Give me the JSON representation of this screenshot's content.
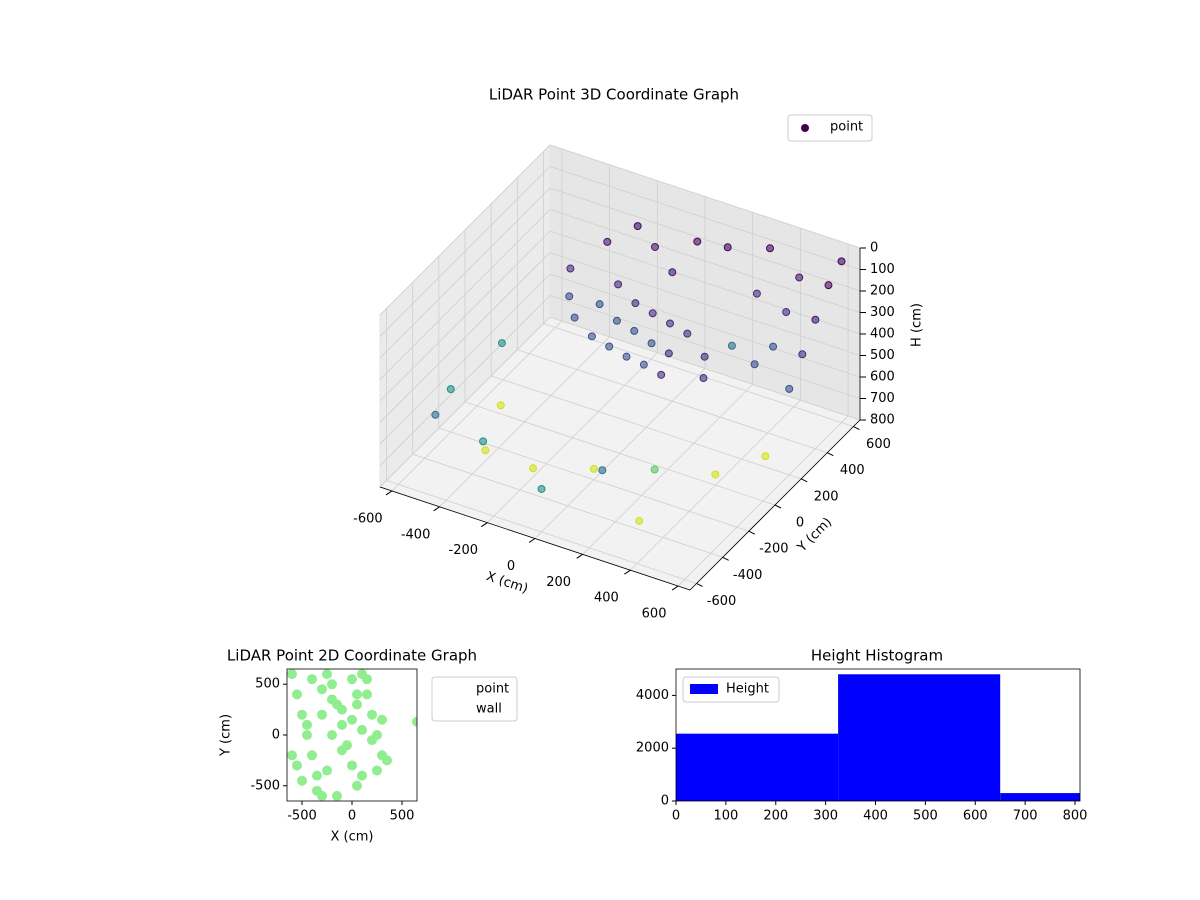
{
  "chart_data": [
    {
      "type": "scatter3d",
      "title": "LiDAR Point 3D Coordinate Graph",
      "xlabel": "X (cm)",
      "ylabel": "Y (cm)",
      "zlabel": "H (cm)",
      "xlim": [
        -650,
        650
      ],
      "ylim": [
        -650,
        650
      ],
      "zlim": [
        800,
        0
      ],
      "xticks": [
        -600,
        -400,
        -200,
        0,
        200,
        400,
        600
      ],
      "yticks": [
        -600,
        -400,
        -200,
        0,
        200,
        400,
        600
      ],
      "zticks": [
        0,
        100,
        200,
        300,
        400,
        500,
        600,
        700,
        800
      ],
      "colormap": [
        "#440154",
        "#46085c",
        "#481a6c",
        "#472d7b",
        "#3b528b",
        "#2c728e",
        "#21918c",
        "#5ec962",
        "#d0e11c"
      ],
      "legend": "upper right",
      "grid": true,
      "series": [
        {
          "name": "point",
          "color": "#440154",
          "x": [
            -300,
            -200,
            -100,
            0,
            100,
            200,
            -250,
            -150,
            -50,
            50,
            150,
            -200,
            -100,
            0,
            100,
            200,
            0,
            -100,
            -200,
            -300,
            300,
            350,
            -350,
            -400,
            50,
            150,
            600,
            600,
            600,
            600,
            600,
            450,
            450,
            450,
            300,
            300,
            -400,
            -200,
            0,
            200,
            400,
            -500,
            300,
            500,
            -500,
            -300,
            0,
            200,
            -600,
            -550,
            250,
            400
          ],
          "y": [
            200,
            150,
            100,
            50,
            0,
            -50,
            300,
            250,
            200,
            150,
            100,
            350,
            300,
            250,
            200,
            150,
            400,
            450,
            500,
            450,
            100,
            0,
            250,
            350,
            500,
            550,
            500,
            400,
            300,
            200,
            600,
            550,
            450,
            350,
            600,
            500,
            -300,
            -300,
            -200,
            -100,
            0,
            0,
            -400,
            200,
            -500,
            -500,
            -600,
            -500,
            -200,
            100,
            400,
            300
          ],
          "h": [
            400,
            420,
            400,
            380,
            350,
            330,
            380,
            390,
            370,
            360,
            340,
            300,
            320,
            300,
            280,
            260,
            200,
            150,
            120,
            200,
            300,
            320,
            350,
            300,
            100,
            120,
            100,
            200,
            300,
            400,
            50,
            150,
            250,
            350,
            100,
            250,
            750,
            760,
            750,
            740,
            750,
            760,
            760,
            750,
            500,
            550,
            600,
            500,
            600,
            550,
            450,
            420
          ]
        }
      ]
    },
    {
      "type": "scatter",
      "title": "LiDAR Point 2D Coordinate Graph",
      "xlabel": "X (cm)",
      "ylabel": "Y (cm)",
      "xlim": [
        -650,
        650
      ],
      "ylim": [
        -650,
        650
      ],
      "xticks": [
        -500,
        0,
        500
      ],
      "yticks": [
        -500,
        0,
        500
      ],
      "legend": "upper right outside",
      "series": [
        {
          "name": "point",
          "color": "#90ee90",
          "x": [
            -600,
            -550,
            -500,
            -450,
            -400,
            -350,
            -300,
            -250,
            -200,
            -150,
            -100,
            -50,
            0,
            50,
            100,
            150,
            200,
            250,
            300,
            -400,
            -300,
            -200,
            -100,
            0,
            100,
            200,
            -500,
            -350,
            -150,
            50,
            650,
            300,
            350,
            -600,
            -450,
            -250,
            0,
            150,
            -300,
            -100,
            100,
            250,
            -550,
            -200,
            50
          ],
          "y": [
            600,
            400,
            200,
            0,
            -200,
            -400,
            -600,
            600,
            500,
            300,
            100,
            -100,
            -300,
            -500,
            600,
            400,
            200,
            0,
            -200,
            550,
            450,
            350,
            250,
            150,
            50,
            -50,
            -450,
            -550,
            -600,
            400,
            130,
            150,
            -250,
            -200,
            100,
            -350,
            550,
            550,
            200,
            -150,
            -400,
            -350,
            -300,
            0,
            300
          ]
        },
        {
          "name": "wall",
          "color": "#0000ff",
          "x": [],
          "y": []
        }
      ]
    },
    {
      "type": "histogram",
      "title": "Height Histogram",
      "bins": [
        0,
        325,
        650,
        810
      ],
      "xlim": [
        0,
        810
      ],
      "ylim": [
        0,
        5000
      ],
      "xticks": [
        0,
        100,
        200,
        300,
        400,
        500,
        600,
        700,
        800
      ],
      "yticks": [
        0,
        2000,
        4000
      ],
      "legend": "upper left",
      "series": [
        {
          "name": "Height",
          "color": "#0000ff",
          "values": [
            2550,
            4800,
            300
          ]
        }
      ]
    }
  ]
}
